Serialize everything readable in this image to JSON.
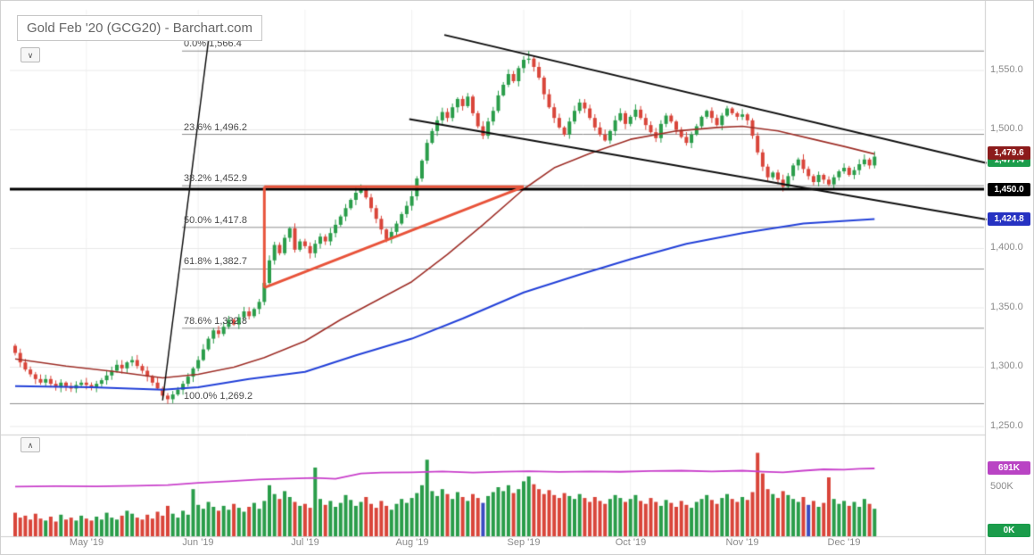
{
  "icons": {
    "chevron_down": "∨",
    "chevron_up": "∧"
  },
  "chart_data": {
    "type": "candlestick",
    "title": "Gold Feb '20 (GCG20) - Barchart.com",
    "price_axis": {
      "tick_labels": [
        "1,550.0",
        "1,500.0",
        "1,400.0",
        "1,350.0",
        "1,300.0",
        "1,250.0"
      ],
      "tick_values": [
        1550,
        1500,
        1450,
        1400,
        1350,
        1300,
        1250
      ],
      "ylim": [
        1250,
        1600
      ]
    },
    "time_axis": {
      "labels": [
        {
          "label": "May '19",
          "start_index": 14
        },
        {
          "label": "Jun '19",
          "start_index": 36
        },
        {
          "label": "Jul '19",
          "start_index": 57
        },
        {
          "label": "Aug '19",
          "start_index": 78
        },
        {
          "label": "Sep '19",
          "start_index": 100
        },
        {
          "label": "Oct '19",
          "start_index": 121
        },
        {
          "label": "Nov '19",
          "start_index": 143
        },
        {
          "label": "Dec '19",
          "start_index": 163
        }
      ]
    },
    "candles": {
      "first_open": 1318,
      "closes": [
        1312,
        1304,
        1298,
        1294,
        1290,
        1287,
        1290,
        1286,
        1283,
        1287,
        1284,
        1282,
        1285,
        1287,
        1285,
        1283,
        1286,
        1289,
        1293,
        1297,
        1302,
        1299,
        1304,
        1306,
        1301,
        1297,
        1292,
        1287,
        1282,
        1276,
        1273,
        1277,
        1281,
        1286,
        1292,
        1299,
        1306,
        1315,
        1324,
        1331,
        1328,
        1334,
        1340,
        1336,
        1342,
        1347,
        1343,
        1349,
        1355,
        1371,
        1390,
        1403,
        1396,
        1409,
        1417,
        1399,
        1406,
        1402,
        1396,
        1404,
        1410,
        1406,
        1413,
        1420,
        1427,
        1434,
        1441,
        1447,
        1450,
        1443,
        1434,
        1425,
        1416,
        1408,
        1414,
        1421,
        1429,
        1436,
        1444,
        1459,
        1474,
        1489,
        1499,
        1508,
        1515,
        1510,
        1519,
        1526,
        1520,
        1528,
        1514,
        1503,
        1495,
        1507,
        1516,
        1529,
        1538,
        1547,
        1541,
        1552,
        1559,
        1560,
        1553,
        1544,
        1530,
        1519,
        1510,
        1502,
        1496,
        1507,
        1516,
        1523,
        1518,
        1510,
        1502,
        1496,
        1491,
        1499,
        1508,
        1514,
        1505,
        1511,
        1517,
        1510,
        1504,
        1498,
        1493,
        1505,
        1512,
        1507,
        1500,
        1494,
        1489,
        1496,
        1503,
        1511,
        1516,
        1510,
        1504,
        1512,
        1518,
        1514,
        1511,
        1513,
        1508,
        1495,
        1481,
        1469,
        1460,
        1464,
        1458,
        1452,
        1461,
        1470,
        1475,
        1467,
        1461,
        1456,
        1462,
        1458,
        1454,
        1460,
        1465,
        1468,
        1462,
        1466,
        1471,
        1475,
        1470,
        1477.4
      ],
      "special_highs": {
        "68": 1454,
        "101": 1566.4
      },
      "special_lows": {
        "30": 1269.2,
        "151": 1448
      }
    },
    "volume": {
      "axis_label": "500K",
      "values_k": [
        240,
        190,
        210,
        170,
        230,
        180,
        160,
        200,
        150,
        220,
        170,
        190,
        160,
        210,
        180,
        160,
        200,
        170,
        240,
        190,
        170,
        210,
        260,
        230,
        190,
        170,
        220,
        180,
        250,
        210,
        310,
        230,
        190,
        260,
        220,
        480,
        320,
        280,
        350,
        300,
        260,
        310,
        270,
        330,
        290,
        250,
        300,
        340,
        280,
        360,
        520,
        430,
        380,
        460,
        400,
        350,
        310,
        330,
        290,
        700,
        380,
        320,
        360,
        300,
        340,
        420,
        370,
        310,
        350,
        400,
        330,
        290,
        360,
        310,
        270,
        330,
        380,
        340,
        390,
        440,
        520,
        780,
        460,
        410,
        480,
        430,
        380,
        450,
        400,
        360,
        430,
        390,
        340,
        410,
        450,
        500,
        460,
        520,
        440,
        480,
        560,
        610,
        530,
        480,
        430,
        470,
        420,
        390,
        440,
        410,
        380,
        430,
        390,
        350,
        400,
        360,
        330,
        380,
        420,
        390,
        350,
        380,
        420,
        360,
        330,
        390,
        350,
        310,
        370,
        340,
        300,
        360,
        320,
        290,
        350,
        380,
        420,
        370,
        330,
        390,
        430,
        380,
        350,
        400,
        370,
        450,
        850,
        640,
        480,
        430,
        390,
        460,
        420,
        380,
        350,
        400,
        320,
        360,
        300,
        340,
        600,
        380,
        330,
        360,
        310,
        350,
        300,
        380,
        330,
        280
      ],
      "color_overrides": {
        "92": "#3b4cc0",
        "156": "#3b4cc0"
      }
    },
    "overlays": {
      "fibonacci": [
        {
          "label": "0.0% 1,566.4",
          "value": 1566.4,
          "full_width": false
        },
        {
          "label": "23.6% 1,496.2",
          "value": 1496.2,
          "full_width": false
        },
        {
          "label": "38.2% 1,452.9",
          "value": 1452.9,
          "full_width": false
        },
        {
          "label": "50.0% 1,417.8",
          "value": 1417.8,
          "full_width": false
        },
        {
          "label": "61.8% 1,382.7",
          "value": 1382.7,
          "full_width": false
        },
        {
          "label": "78.6% 1,332.8",
          "value": 1332.8,
          "full_width": false
        },
        {
          "label": "100.0% 1,269.2",
          "value": 1269.2,
          "full_width": true
        }
      ],
      "horizontal_line": {
        "value": 1450
      },
      "sma_red": {
        "last_value": 1479.6,
        "points": [
          [
            0,
            1307
          ],
          [
            10,
            1301
          ],
          [
            20,
            1296
          ],
          [
            29,
            1291
          ],
          [
            36,
            1294
          ],
          [
            43,
            1300
          ],
          [
            49,
            1308
          ],
          [
            57,
            1322
          ],
          [
            64,
            1340
          ],
          [
            71,
            1356
          ],
          [
            78,
            1372
          ],
          [
            85,
            1395
          ],
          [
            92,
            1420
          ],
          [
            100,
            1450
          ],
          [
            106,
            1468
          ],
          [
            113,
            1480
          ],
          [
            121,
            1492
          ],
          [
            130,
            1499
          ],
          [
            138,
            1502
          ],
          [
            143,
            1503
          ],
          [
            150,
            1499
          ],
          [
            157,
            1492
          ],
          [
            163,
            1486
          ],
          [
            169,
            1479.6
          ]
        ]
      },
      "sma_blue": {
        "last_value": 1424.8,
        "points": [
          [
            0,
            1284
          ],
          [
            15,
            1283
          ],
          [
            29,
            1281
          ],
          [
            36,
            1283
          ],
          [
            46,
            1290
          ],
          [
            57,
            1296
          ],
          [
            67,
            1310
          ],
          [
            78,
            1324
          ],
          [
            88,
            1341
          ],
          [
            100,
            1363
          ],
          [
            111,
            1378
          ],
          [
            121,
            1391
          ],
          [
            132,
            1404
          ],
          [
            143,
            1413
          ],
          [
            155,
            1421
          ],
          [
            169,
            1424.8
          ]
        ]
      },
      "open_interest": {
        "last_label": "691K",
        "points_k": [
          [
            0,
            505
          ],
          [
            8,
            510
          ],
          [
            16,
            508
          ],
          [
            24,
            515
          ],
          [
            30,
            522
          ],
          [
            36,
            545
          ],
          [
            42,
            560
          ],
          [
            48,
            578
          ],
          [
            54,
            588
          ],
          [
            59,
            595
          ],
          [
            63,
            585
          ],
          [
            68,
            640
          ],
          [
            72,
            648
          ],
          [
            78,
            652
          ],
          [
            84,
            660
          ],
          [
            90,
            648
          ],
          [
            96,
            658
          ],
          [
            101,
            662
          ],
          [
            107,
            655
          ],
          [
            113,
            660
          ],
          [
            119,
            657
          ],
          [
            125,
            665
          ],
          [
            131,
            668
          ],
          [
            137,
            660
          ],
          [
            143,
            668
          ],
          [
            147,
            658
          ],
          [
            151,
            652
          ],
          [
            155,
            668
          ],
          [
            159,
            682
          ],
          [
            163,
            678
          ],
          [
            166,
            688
          ],
          [
            169,
            691
          ]
        ]
      },
      "drawings": {
        "channel_upper": {
          "i1": 84.4,
          "p1": 1580,
          "i2": 191,
          "p2": 1472
        },
        "channel_lower": {
          "i1": 77.5,
          "p1": 1509,
          "i2": 191,
          "p2": 1424.5
        },
        "impulse": {
          "i1": 29,
          "p1": 1272,
          "i2": 38,
          "p2": 1575
        },
        "triangle": {
          "i1": 49,
          "i2": 100,
          "top": 1452,
          "bottom_start": 1367
        }
      }
    },
    "badges": {
      "price": [
        {
          "label": "1,479.6",
          "color": "#8c1b1b"
        },
        {
          "label": "1,477.4",
          "color": "#1b9c4b"
        },
        {
          "label": "1,450.0",
          "color": "#000000"
        },
        {
          "label": "1,424.8",
          "color": "#2632c2"
        }
      ],
      "volume": [
        {
          "label": "691K",
          "color": "#b944c4"
        },
        {
          "label": "0K",
          "color": "#1b9c4b"
        }
      ]
    },
    "colors": {
      "up": "#2a9d4a",
      "down": "#d9453a",
      "sma_red": "#9e2f28",
      "sma_blue": "#2341d8",
      "oi": "#c940cb",
      "fib_line": "#8c8c8c",
      "grid": "#e9e9e9",
      "vgrid": "#f1f1f1",
      "trend": "#101010",
      "triangle": "#e8533a",
      "level_line": "#000000",
      "axis_border": "#cccccc"
    }
  }
}
